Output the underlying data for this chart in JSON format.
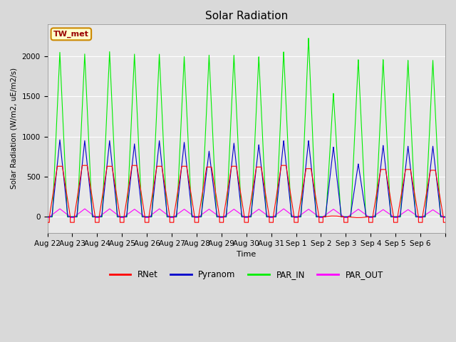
{
  "title": "Solar Radiation",
  "ylabel": "Solar Radiation (W/m2, uE/m2/s)",
  "xlabel": "Time",
  "ylim": [
    -200,
    2400
  ],
  "background_color": "#d9d9d9",
  "plot_bg_color": "#e8e8e8",
  "line_colors": {
    "RNet": "#ff0000",
    "Pyranom": "#0000cc",
    "PAR_IN": "#00ee00",
    "PAR_OUT": "#ff00ff"
  },
  "legend_label": "TW_met",
  "legend_label_bg": "#ffffcc",
  "legend_label_border": "#cc8800",
  "n_days": 16,
  "tick_labels": [
    "Aug 22",
    "Aug 23",
    "Aug 24",
    "Aug 25",
    "Aug 26",
    "Aug 27",
    "Aug 28",
    "Aug 29",
    "Aug 30",
    "Aug 31",
    "Sep 1",
    "Sep 2",
    "Sep 3",
    "Sep 4",
    "Sep 5",
    "Sep 6"
  ],
  "rnet_peaks": [
    630,
    640,
    630,
    640,
    630,
    630,
    620,
    630,
    620,
    640,
    600,
    10,
    -10,
    590,
    590,
    580
  ],
  "pyranom_peaks": [
    960,
    950,
    950,
    910,
    950,
    930,
    820,
    920,
    900,
    950,
    950,
    870,
    660,
    890,
    880,
    880
  ],
  "par_in_peaks": [
    2050,
    2030,
    2060,
    2030,
    2030,
    2000,
    2020,
    2020,
    2000,
    2060,
    2230,
    1540,
    1960,
    1960,
    1950,
    1950
  ],
  "par_out_peaks": [
    100,
    100,
    100,
    95,
    100,
    95,
    95,
    95,
    95,
    100,
    95,
    95,
    95,
    90,
    90,
    88
  ],
  "rnet_night": -70,
  "par_out_night": -10,
  "pyranom_night": 0,
  "par_in_night": 0
}
